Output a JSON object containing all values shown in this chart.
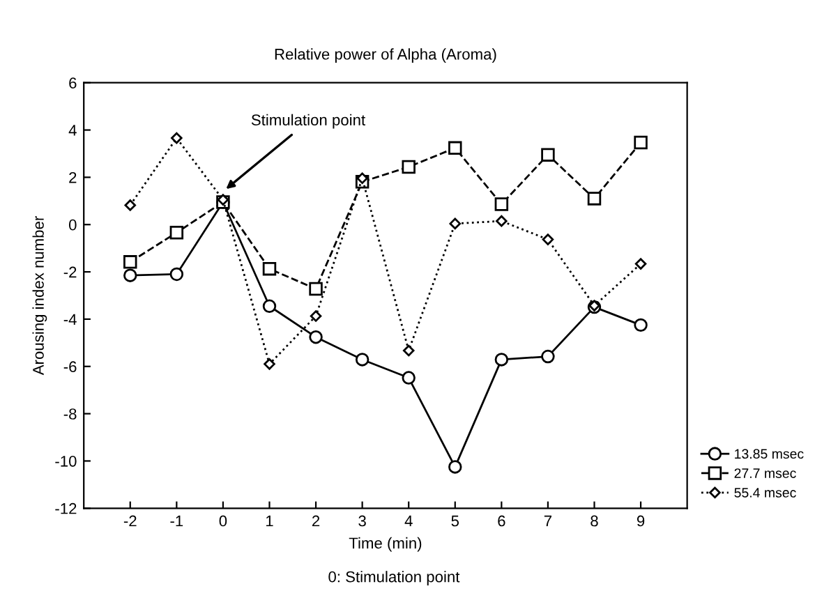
{
  "chart_data": {
    "type": "line",
    "title": "Relative power of Alpha (Aroma)",
    "xlabel": "Time (min)",
    "ylabel": "Arousing index number",
    "x": [
      -2,
      -1,
      0,
      1,
      2,
      3,
      4,
      5,
      6,
      7,
      8,
      9
    ],
    "series": [
      {
        "name": "13.85 msec",
        "color": "#000000",
        "marker": "circle",
        "line_style": "solid",
        "values": [
          -2.15,
          -2.1,
          0.95,
          -3.45,
          -4.76,
          -5.71,
          -6.48,
          -10.25,
          -5.71,
          -5.58,
          -3.49,
          -4.25
        ]
      },
      {
        "name": "27.7 msec",
        "color": "#000000",
        "marker": "square",
        "line_style": "dashed",
        "values": [
          -1.58,
          -0.34,
          0.95,
          -1.87,
          -2.72,
          1.81,
          2.44,
          3.24,
          0.86,
          2.95,
          1.1,
          3.47
        ]
      },
      {
        "name": "55.4 msec",
        "color": "#000000",
        "marker": "diamond",
        "line_style": "dotted",
        "values": [
          0.82,
          3.66,
          1.05,
          -5.9,
          -3.87,
          1.96,
          -5.33,
          0.04,
          0.15,
          -0.63,
          -3.43,
          -1.66
        ]
      }
    ],
    "xlim": [
      -3,
      10
    ],
    "xticks": [
      -2,
      -1,
      0,
      1,
      2,
      3,
      4,
      5,
      6,
      7,
      8,
      9
    ],
    "ylim": [
      -12,
      6
    ],
    "yticks": [
      -12,
      -10,
      -8,
      -6,
      -4,
      -2,
      0,
      2,
      4,
      6
    ],
    "grid": false,
    "legend": "bottom right",
    "annotations": [
      {
        "text": "Stimulation point",
        "x": 0,
        "y": 1.4
      },
      "0: Stimulation point"
    ]
  }
}
